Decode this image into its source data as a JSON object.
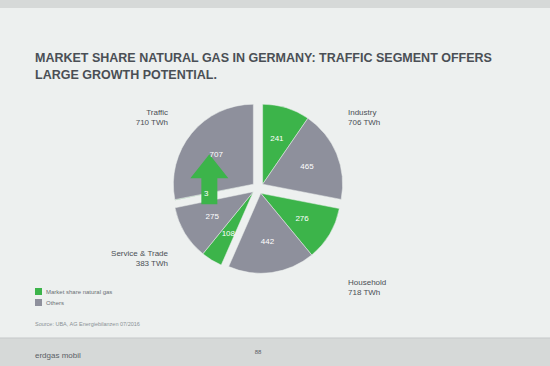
{
  "chart_data": {
    "type": "pie",
    "title": "MARKET SHARE NATURAL GAS IN GERMANY: TRAFFIC SEGMENT OFFERS LARGE GROWTH POTENTIAL.",
    "categories": [
      "Industry",
      "Household",
      "Service & Trade",
      "Traffic"
    ],
    "totals": [
      {
        "value": 706,
        "label": "706 TWh"
      },
      {
        "value": 718,
        "label": "718 TWh"
      },
      {
        "value": 383,
        "label": "383 TWh"
      },
      {
        "value": 710,
        "label": "710 TWh"
      }
    ],
    "series": [
      {
        "name": "Market share natural gas",
        "color": "#3cb44a",
        "values": [
          241,
          276,
          108,
          3
        ]
      },
      {
        "name": "Others",
        "color": "#8e909c",
        "values": [
          465,
          442,
          275,
          707
        ]
      }
    ],
    "data_labels": true,
    "legend": "bottom-left",
    "annotations": [
      "Source: UBA, AG Energiebilanzen 07/2016",
      "erdgas mobil",
      "88"
    ]
  }
}
